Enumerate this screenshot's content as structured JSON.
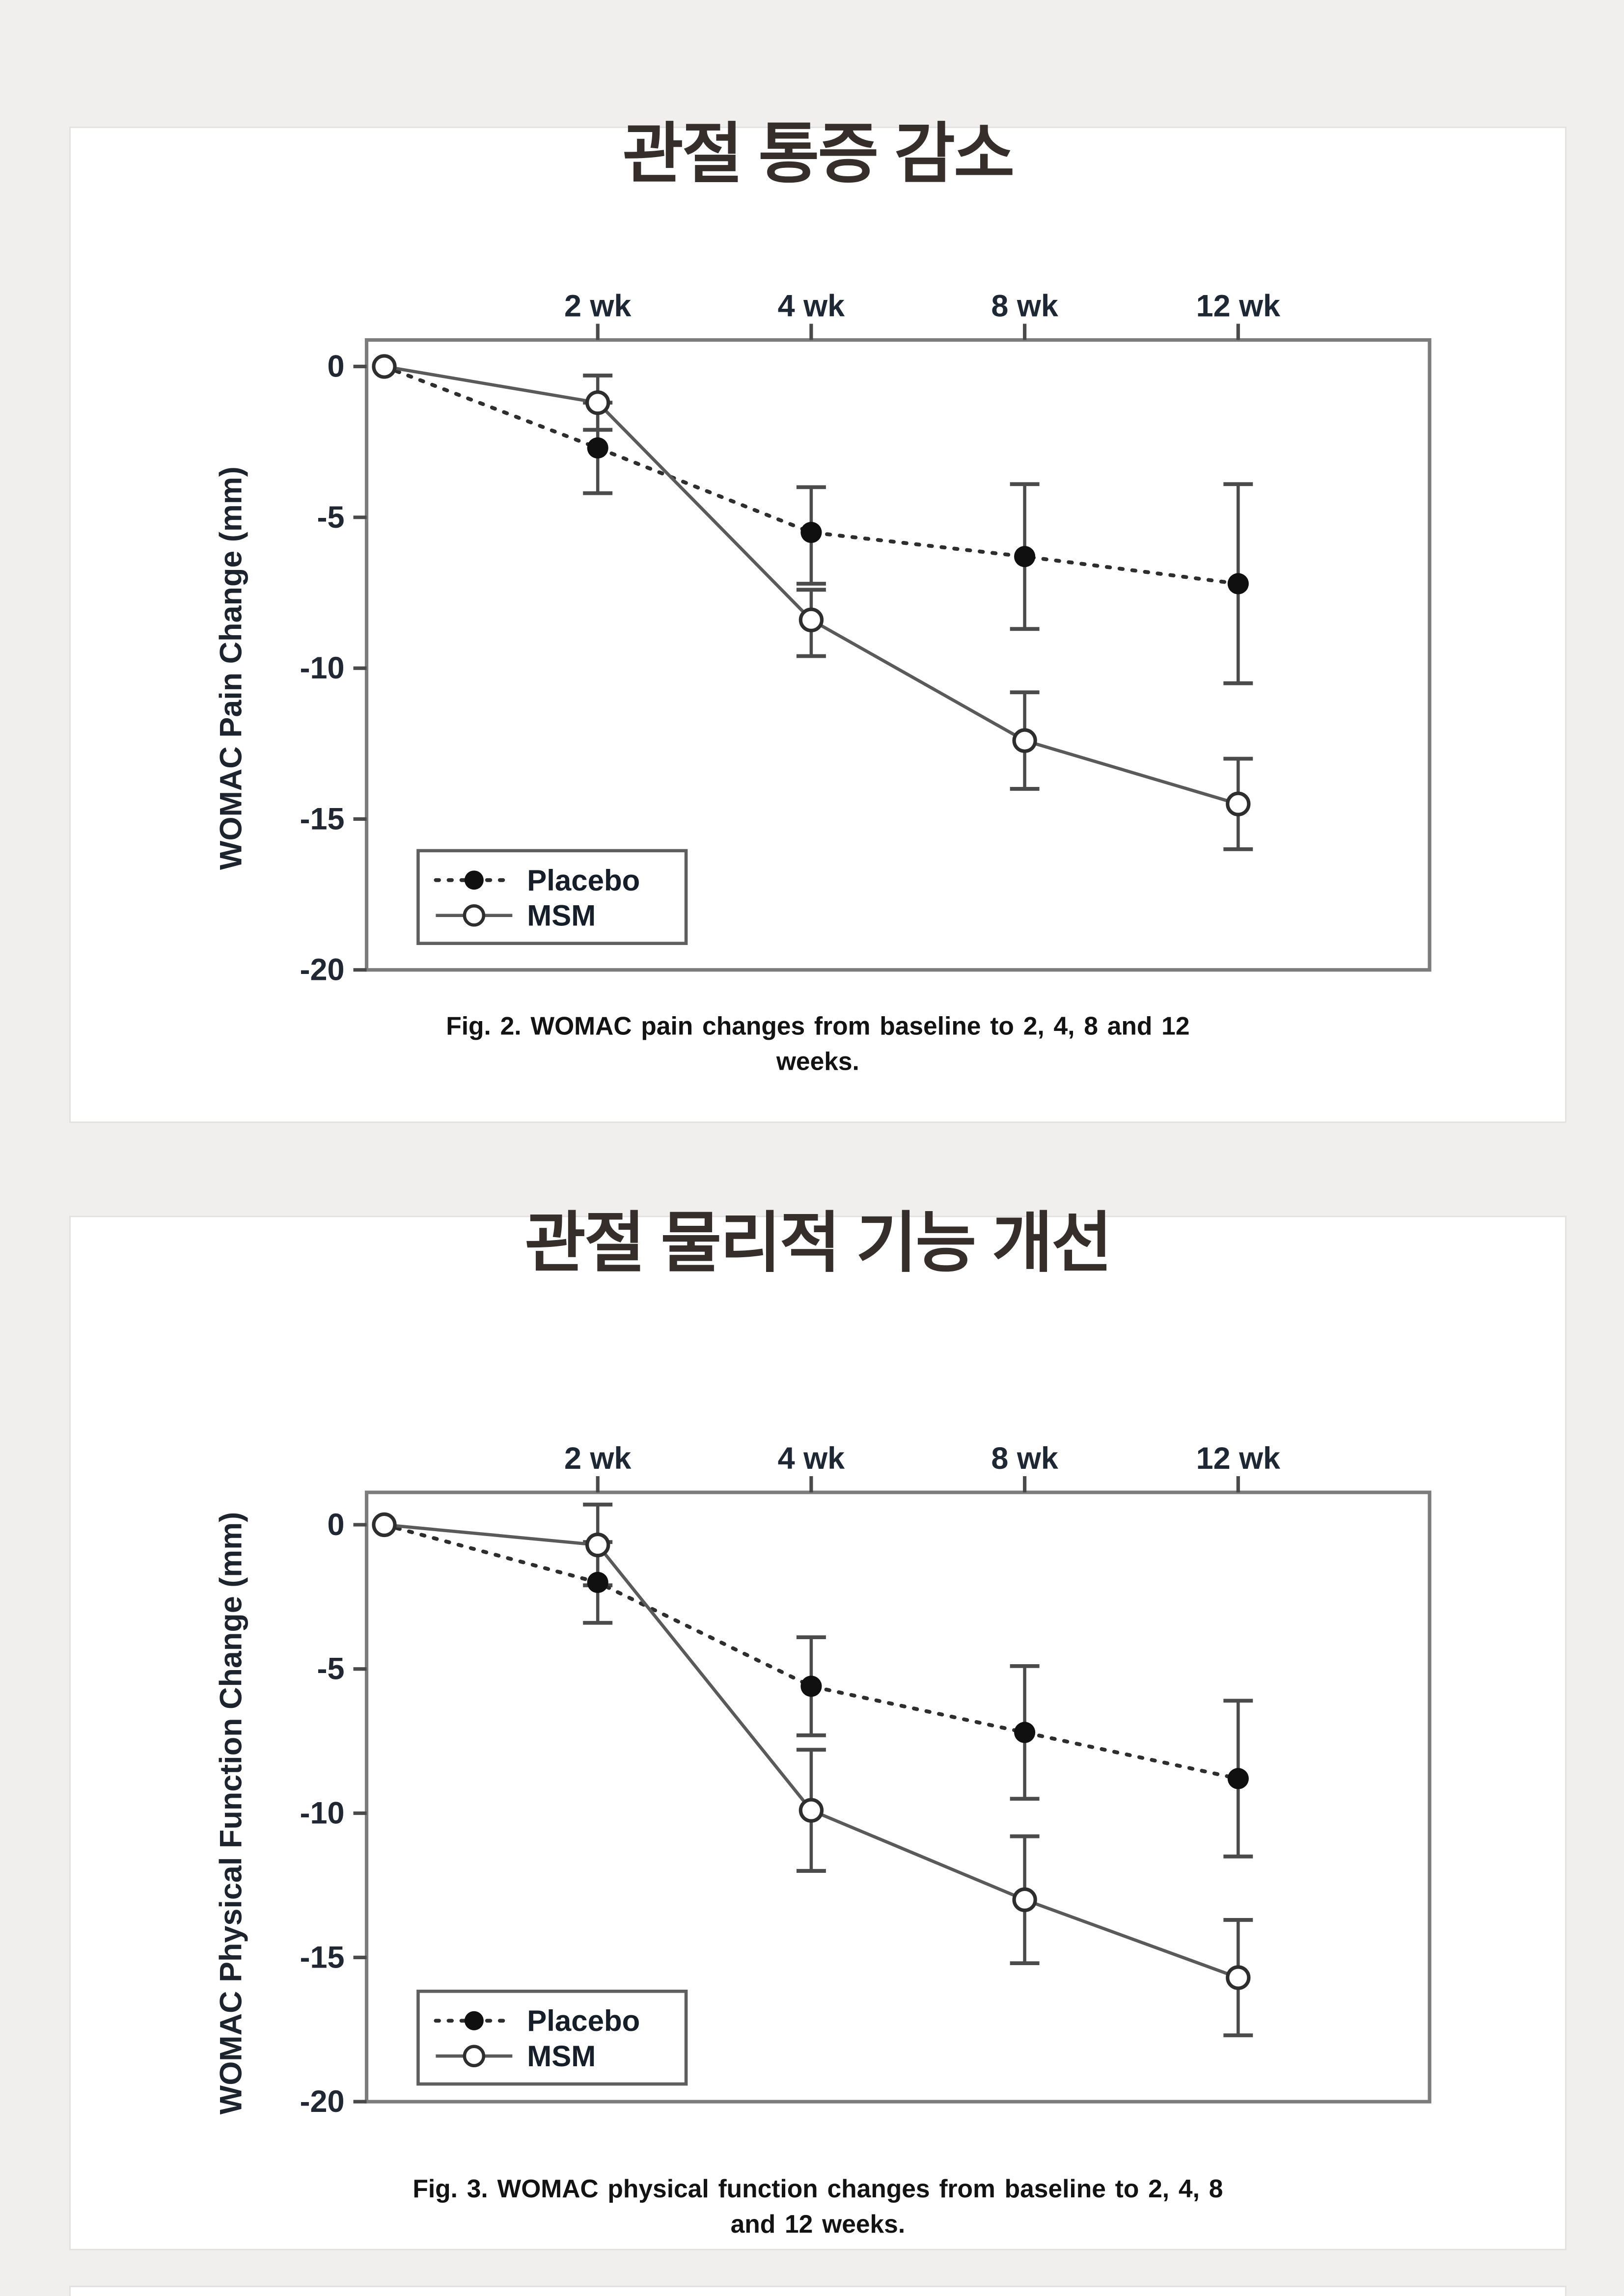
{
  "page": {
    "background": "#f0efee",
    "card_background": "#ffffff"
  },
  "colors": {
    "axis": "#7c7c7c",
    "tick": "#4a4a4a",
    "error_bar": "#4b4b4b",
    "placebo_marker": "#101010",
    "placebo_line": "#2e2e2e",
    "msm_line": "#5a5a5a",
    "msm_marker_stroke": "#2e2e2e",
    "legend_border": "#5f5f5f",
    "title": "#352e2a",
    "text": "#131313"
  },
  "chart_data": [
    {
      "type": "line",
      "title": "관절 통증 감소",
      "caption": [
        "Fig. 2. WOMAC pain changes from baseline to 2, 4, 8 and 12",
        "weeks."
      ],
      "ylabel": "WOMAC Pain Change (mm)",
      "x_ticks": [
        "2 wk",
        "4 wk",
        "8 wk",
        "12 wk"
      ],
      "weeks": [
        0,
        2,
        4,
        8,
        12
      ],
      "ylim": [
        -20,
        0
      ],
      "y_ticks": [
        0,
        -5,
        -10,
        -15,
        -20
      ],
      "grid": false,
      "legend_position": "bottom-left",
      "legend": [
        "Placebo",
        "MSM"
      ],
      "series": [
        {
          "name": "Placebo",
          "line_style": "dotted",
          "marker": "filled-circle",
          "values": [
            0,
            -2.7,
            -5.5,
            -6.3,
            -7.2
          ],
          "err_high": [
            null,
            -1.2,
            -4.0,
            -3.9,
            -3.9
          ],
          "err_low": [
            null,
            -4.2,
            -7.2,
            -8.7,
            -10.5
          ]
        },
        {
          "name": "MSM",
          "line_style": "solid",
          "marker": "open-circle",
          "values": [
            0,
            -1.2,
            -8.4,
            -12.4,
            -14.5
          ],
          "err_high": [
            null,
            -0.3,
            -7.4,
            -10.8,
            -13.0
          ],
          "err_low": [
            null,
            -2.1,
            -9.6,
            -14.0,
            -16.0
          ]
        }
      ]
    },
    {
      "type": "line",
      "title": "관절 물리적 기능 개선",
      "caption": [
        "Fig. 3. WOMAC physical function changes from baseline to 2, 4, 8",
        "and 12 weeks."
      ],
      "ylabel": "WOMAC Physical Function Change (mm)",
      "x_ticks": [
        "2 wk",
        "4 wk",
        "8 wk",
        "12 wk"
      ],
      "weeks": [
        0,
        2,
        4,
        8,
        12
      ],
      "ylim": [
        -20,
        0
      ],
      "y_ticks": [
        0,
        -5,
        -10,
        -15,
        -20
      ],
      "grid": false,
      "legend_position": "bottom-left",
      "legend": [
        "Placebo",
        "MSM"
      ],
      "series": [
        {
          "name": "Placebo",
          "line_style": "dotted",
          "marker": "filled-circle",
          "values": [
            0,
            -2.0,
            -5.6,
            -7.2,
            -8.8
          ],
          "err_high": [
            null,
            -0.6,
            -3.9,
            -4.9,
            -6.1
          ],
          "err_low": [
            null,
            -3.4,
            -7.3,
            -9.5,
            -11.5
          ]
        },
        {
          "name": "MSM",
          "line_style": "solid",
          "marker": "open-circle",
          "values": [
            0,
            -0.7,
            -9.9,
            -13.0,
            -15.7
          ],
          "err_high": [
            null,
            0.7,
            -7.8,
            -10.8,
            -13.7
          ],
          "err_low": [
            null,
            -2.1,
            -12.0,
            -15.2,
            -17.7
          ]
        }
      ]
    }
  ]
}
